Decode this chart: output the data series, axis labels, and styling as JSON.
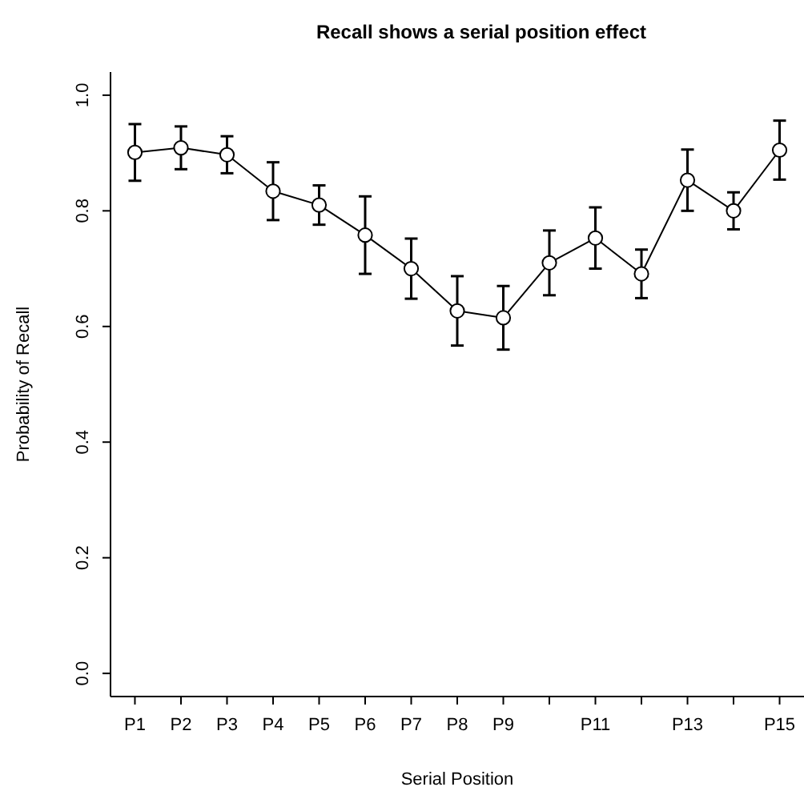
{
  "chart_data": {
    "type": "line",
    "title": "Recall shows a serial position effect",
    "xlabel": "Serial Position",
    "ylabel": "Probability of Recall",
    "categories": [
      "P1",
      "P2",
      "P3",
      "P4",
      "P5",
      "P6",
      "P7",
      "P8",
      "P9",
      null,
      "P11",
      null,
      "P13",
      null,
      "P15"
    ],
    "values": [
      0.901,
      0.909,
      0.897,
      0.834,
      0.81,
      0.758,
      0.7,
      0.627,
      0.615,
      0.71,
      0.753,
      0.691,
      0.853,
      0.8,
      0.905
    ],
    "errors": [
      0.049,
      0.037,
      0.032,
      0.05,
      0.034,
      0.067,
      0.052,
      0.06,
      0.055,
      0.056,
      0.053,
      0.042,
      0.053,
      0.032,
      0.051
    ],
    "color": "#000000",
    "marker": "circle",
    "line_style": "solid",
    "grid": false,
    "ylim": [
      -0.04,
      1.04
    ],
    "yticks": [
      {
        "value": 0,
        "label": "0.0"
      },
      0.2,
      0.4,
      0.6,
      0.8,
      {
        "value": 1,
        "label": "1.0"
      }
    ]
  }
}
